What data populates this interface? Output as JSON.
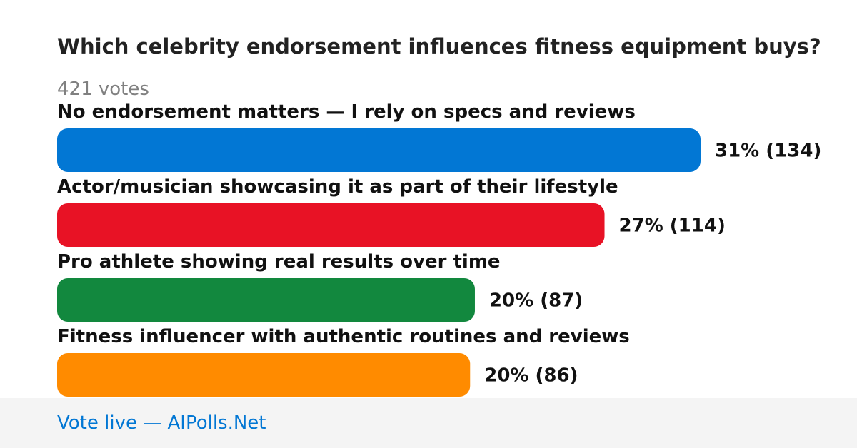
{
  "poll": {
    "question": "Which celebrity endorsement influences fitness equipment buys?",
    "votes_label": "421 votes"
  },
  "chart_data": {
    "type": "bar",
    "orientation": "horizontal",
    "title": "Which celebrity endorsement influences fitness equipment buys?",
    "total_votes": 421,
    "categories": [
      "No endorsement matters — I rely on specs and reviews",
      "Actor/musician showcasing it as part of their lifestyle",
      "Pro athlete showing real results over time",
      "Fitness influencer with authentic routines and reviews"
    ],
    "values": [
      134,
      114,
      87,
      86
    ],
    "percent": [
      31,
      27,
      20,
      20
    ],
    "value_labels": [
      "31% (134)",
      "27% (114)",
      "20% (87)",
      "20% (86)"
    ],
    "colors": [
      "#0277d4",
      "#e81225",
      "#12883e",
      "#ff8b00"
    ]
  },
  "footer": {
    "link_text": "Vote live — AIPolls.Net"
  }
}
